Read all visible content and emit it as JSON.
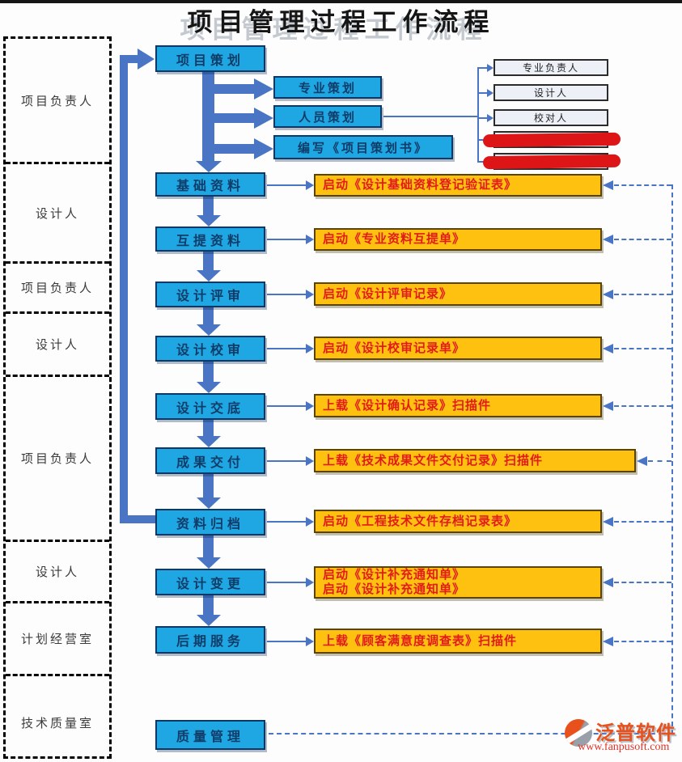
{
  "title": "项目管理过程工作流程",
  "sidebar": {
    "rows": [
      {
        "label": "项目负责人"
      },
      {
        "label": "设计人"
      },
      {
        "label": "项目负责人"
      },
      {
        "label": "设计人"
      },
      {
        "label": "项目负责人"
      },
      {
        "label": "设计人"
      },
      {
        "label": "计划经营室"
      },
      {
        "label": "技术质量室"
      }
    ]
  },
  "flow": {
    "steps": [
      {
        "label": "项目策划"
      },
      {
        "label": "基础资料"
      },
      {
        "label": "互提资料"
      },
      {
        "label": "设计评审"
      },
      {
        "label": "设计校审"
      },
      {
        "label": "设计交底"
      },
      {
        "label": "成果交付"
      },
      {
        "label": "资料归档"
      },
      {
        "label": "设计变更"
      },
      {
        "label": "后期服务"
      },
      {
        "label": "质量管理"
      }
    ]
  },
  "planning_branches": [
    {
      "label": "专业策划"
    },
    {
      "label": "人员策划"
    },
    {
      "label": "编写《项目策划书》"
    }
  ],
  "roles": {
    "items": [
      {
        "label": "专业负责人",
        "redacted": false
      },
      {
        "label": "设计人",
        "redacted": false
      },
      {
        "label": "校对人",
        "redacted": false
      },
      {
        "label": "",
        "redacted": true
      },
      {
        "label": "",
        "redacted": true
      }
    ]
  },
  "documents": [
    {
      "lines": [
        "启动《设计基础资料登记验证表》"
      ]
    },
    {
      "lines": [
        "启动《专业资料互提单》"
      ]
    },
    {
      "lines": [
        "启动《设计评审记录》"
      ]
    },
    {
      "lines": [
        "启动《设计校审记录单》"
      ]
    },
    {
      "lines": [
        "上载《设计确认记录》扫描件"
      ]
    },
    {
      "lines": [
        "上载《技术成果文件交付记录》扫描件"
      ]
    },
    {
      "lines": [
        "启动《工程技术文件存档记录表》"
      ]
    },
    {
      "lines": [
        "启动《设计补充通知单》",
        "启动《设计补充通知单》"
      ]
    },
    {
      "lines": [
        "上载《顾客满意度调查表》扫描件"
      ]
    }
  ],
  "watermark": {
    "brand": "泛普软件",
    "url": "www.fanpusoft.com"
  },
  "colors": {
    "process_fill": "#1fa7e4",
    "process_border": "#0b3866",
    "process_text": "#103c68",
    "doc_fill": "#fec110",
    "doc_border": "#5b4300",
    "doc_text": "#e21b1b",
    "role_fill": "#edf0f7",
    "role_border": "#2b2b2b",
    "arrow": "#4a74c4",
    "redaction": "#de1517",
    "brand_orange": "#e8511c",
    "brand_red": "#e03226"
  }
}
